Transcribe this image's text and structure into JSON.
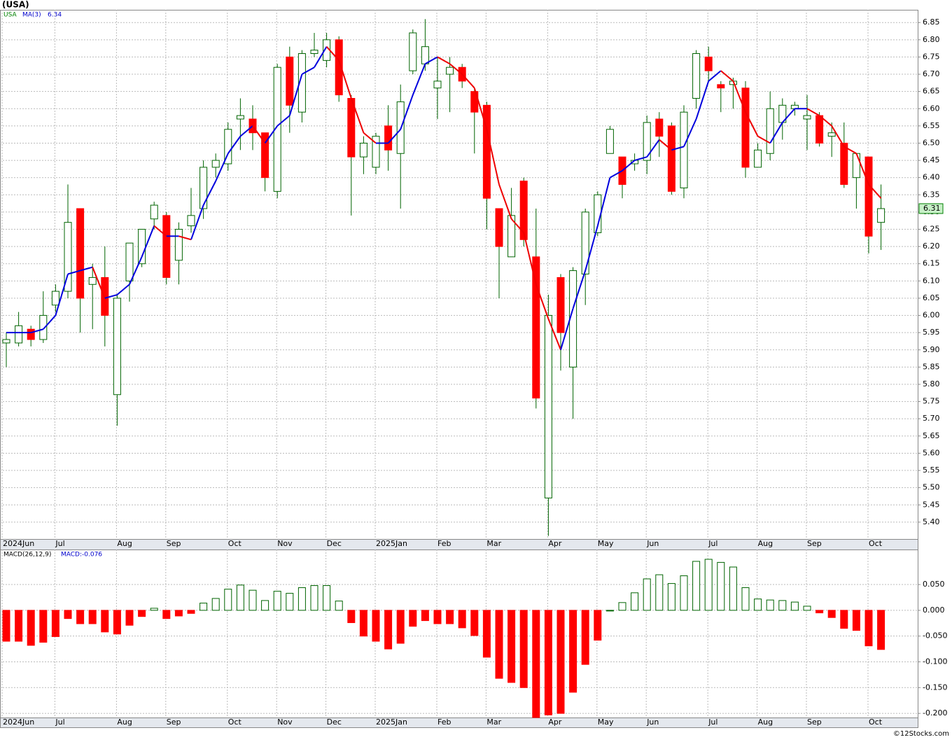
{
  "chart_data": [
    {
      "type": "candlestick",
      "title": "(USA)",
      "symbol": "USA",
      "categories": [
        "2024Jun",
        null,
        null,
        null,
        "Jul",
        null,
        null,
        null,
        null,
        "Aug",
        null,
        null,
        null,
        "Sep",
        null,
        null,
        null,
        null,
        "Oct",
        null,
        null,
        null,
        "Nov",
        null,
        null,
        null,
        "Dec",
        null,
        null,
        null,
        "2025Jan",
        null,
        null,
        null,
        null,
        "Feb",
        null,
        null,
        null,
        "Mar",
        null,
        null,
        null,
        null,
        "Apr",
        null,
        null,
        null,
        "May",
        null,
        null,
        null,
        "Jun",
        null,
        null,
        null,
        null,
        "Jul",
        null,
        null,
        null,
        "Aug",
        null,
        null,
        null,
        "Sep",
        null,
        null,
        null,
        null,
        "Oct",
        null
      ],
      "open": [
        5.92,
        5.92,
        5.96,
        5.93,
        6.03,
        6.07,
        6.31,
        6.09,
        6.11,
        5.77,
        6.1,
        6.15,
        6.28,
        6.29,
        6.16,
        6.26,
        6.31,
        6.43,
        6.44,
        6.57,
        6.57,
        6.53,
        6.36,
        6.75,
        6.59,
        6.76,
        6.74,
        6.8,
        6.63,
        6.46,
        6.43,
        6.55,
        6.47,
        6.71,
        6.73,
        6.66,
        6.7,
        6.72,
        6.65,
        6.61,
        6.31,
        6.17,
        6.39,
        6.17,
        5.47,
        6.11,
        5.85,
        6.12,
        6.24,
        6.47,
        6.46,
        6.44,
        6.45,
        6.57,
        6.55,
        6.37,
        6.63,
        6.75,
        6.67,
        6.67,
        6.66,
        6.43,
        6.47,
        6.56,
        6.6,
        6.57,
        6.58,
        6.52,
        6.5,
        6.4,
        6.46,
        6.27
      ],
      "high": [
        5.95,
        6.01,
        5.97,
        6.07,
        6.09,
        6.38,
        6.31,
        6.15,
        6.2,
        6.06,
        6.21,
        6.25,
        6.33,
        6.3,
        6.27,
        6.37,
        6.45,
        6.47,
        6.56,
        6.63,
        6.61,
        6.53,
        6.73,
        6.78,
        6.77,
        6.82,
        6.82,
        6.81,
        6.64,
        6.52,
        6.53,
        6.61,
        6.67,
        6.83,
        6.86,
        6.75,
        6.75,
        6.73,
        6.66,
        6.62,
        6.31,
        6.37,
        6.4,
        6.31,
        6.06,
        6.12,
        6.14,
        6.31,
        6.36,
        6.55,
        6.46,
        6.47,
        6.58,
        6.59,
        6.56,
        6.61,
        6.77,
        6.78,
        6.68,
        6.69,
        6.68,
        6.5,
        6.65,
        6.63,
        6.62,
        6.64,
        6.59,
        6.56,
        6.56,
        6.47,
        6.46,
        6.38
      ],
      "low": [
        5.85,
        5.91,
        5.91,
        5.92,
        6.01,
        6.05,
        5.95,
        5.96,
        5.91,
        5.68,
        6.04,
        6.14,
        6.25,
        6.09,
        6.09,
        6.24,
        6.28,
        6.4,
        6.42,
        6.48,
        6.48,
        6.36,
        6.34,
        6.53,
        6.56,
        6.75,
        6.72,
        6.62,
        6.29,
        6.41,
        6.41,
        6.42,
        6.31,
        6.7,
        6.71,
        6.57,
        6.59,
        6.66,
        6.47,
        6.25,
        6.05,
        6.17,
        6.2,
        5.73,
        5.36,
        5.84,
        5.7,
        6.03,
        6.23,
        6.47,
        6.34,
        6.42,
        6.41,
        6.46,
        6.35,
        6.34,
        6.6,
        6.68,
        6.59,
        6.6,
        6.4,
        6.43,
        6.45,
        6.51,
        6.58,
        6.48,
        6.49,
        6.46,
        6.37,
        6.31,
        6.18,
        6.19
      ],
      "close": [
        5.93,
        5.97,
        5.93,
        6.0,
        6.07,
        6.27,
        6.05,
        6.11,
        6.0,
        6.05,
        6.21,
        6.25,
        6.32,
        6.11,
        6.25,
        6.29,
        6.43,
        6.45,
        6.54,
        6.58,
        6.53,
        6.4,
        6.72,
        6.61,
        6.76,
        6.77,
        6.8,
        6.64,
        6.46,
        6.5,
        6.52,
        6.48,
        6.62,
        6.82,
        6.78,
        6.68,
        6.72,
        6.68,
        6.59,
        6.34,
        6.2,
        6.29,
        6.22,
        5.76,
        6.0,
        5.95,
        6.13,
        6.3,
        6.35,
        6.54,
        6.38,
        6.45,
        6.56,
        6.52,
        6.36,
        6.59,
        6.76,
        6.71,
        6.66,
        6.68,
        6.43,
        6.48,
        6.6,
        6.61,
        6.61,
        6.58,
        6.5,
        6.53,
        6.38,
        6.47,
        6.23,
        6.31
      ],
      "up_color": "#ffffff",
      "down_color": "#ff0000",
      "wick_color": "#006400",
      "series": [
        {
          "name": "MA(3)",
          "rise_color": "#0000dd",
          "fall_color": "#ee0000",
          "values": [
            5.95,
            5.95,
            5.95,
            5.96,
            6.0,
            6.12,
            6.13,
            6.14,
            6.05,
            6.06,
            6.09,
            6.17,
            6.26,
            6.23,
            6.23,
            6.22,
            6.32,
            6.39,
            6.47,
            6.52,
            6.55,
            6.5,
            6.55,
            6.58,
            6.7,
            6.72,
            6.78,
            6.74,
            6.63,
            6.53,
            6.5,
            6.5,
            6.54,
            6.64,
            6.73,
            6.75,
            6.73,
            6.7,
            6.66,
            6.54,
            6.38,
            6.28,
            6.24,
            6.09,
            5.99,
            5.9,
            6.02,
            6.13,
            6.26,
            6.4,
            6.42,
            6.45,
            6.46,
            6.51,
            6.48,
            6.49,
            6.57,
            6.68,
            6.71,
            6.68,
            6.59,
            6.52,
            6.5,
            6.56,
            6.6,
            6.6,
            6.58,
            6.55,
            6.49,
            6.47,
            6.38,
            6.34
          ]
        }
      ],
      "ylim": [
        5.351,
        6.887
      ],
      "yticks": [
        {
          "value": 6.85,
          "label": "6.85"
        },
        {
          "value": 6.8,
          "label": "6.80"
        },
        {
          "value": 6.75,
          "label": "6.75"
        },
        {
          "value": 6.7,
          "label": "6.70"
        },
        {
          "value": 6.65,
          "label": "6.65"
        },
        {
          "value": 6.6,
          "label": "6.60"
        },
        {
          "value": 6.55,
          "label": "6.55"
        },
        {
          "value": 6.5,
          "label": "6.50"
        },
        {
          "value": 6.45,
          "label": "6.45"
        },
        {
          "value": 6.4,
          "label": "6.40"
        },
        {
          "value": 6.35,
          "label": "6.35"
        },
        {
          "value": 6.3,
          "label": "6.30"
        },
        {
          "value": 6.25,
          "label": "6.25"
        },
        {
          "value": 6.2,
          "label": "6.20"
        },
        {
          "value": 6.15,
          "label": "6.15"
        },
        {
          "value": 6.1,
          "label": "6.10"
        },
        {
          "value": 6.05,
          "label": "6.05"
        },
        {
          "value": 6.0,
          "label": "6.00"
        },
        {
          "value": 5.95,
          "label": "5.95"
        },
        {
          "value": 5.9,
          "label": "5.90"
        },
        {
          "value": 5.85,
          "label": "5.85"
        },
        {
          "value": 5.8,
          "label": "5.80"
        },
        {
          "value": 5.75,
          "label": "5.75"
        },
        {
          "value": 5.7,
          "label": "5.70"
        },
        {
          "value": 5.65,
          "label": "5.65"
        },
        {
          "value": 5.6,
          "label": "5.60"
        },
        {
          "value": 5.55,
          "label": "5.55"
        },
        {
          "value": 5.5,
          "label": "5.50"
        },
        {
          "value": 5.45,
          "label": "5.45"
        },
        {
          "value": 5.4,
          "label": "5.40"
        }
      ],
      "grid": true
    },
    {
      "type": "bar",
      "title": "MACD(26,12,9)",
      "annotation": "MACD:-0.076",
      "pos_color": "#ffffff",
      "neg_color": "#ff0000",
      "edge_color": "#006400",
      "values": [
        -0.06,
        -0.06,
        -0.068,
        -0.062,
        -0.051,
        -0.016,
        -0.026,
        -0.026,
        -0.042,
        -0.046,
        -0.029,
        -0.012,
        0.004,
        -0.016,
        -0.011,
        -0.006,
        0.014,
        0.023,
        0.041,
        0.049,
        0.039,
        0.019,
        0.037,
        0.033,
        0.044,
        0.048,
        0.048,
        0.018,
        -0.024,
        -0.05,
        -0.06,
        -0.075,
        -0.064,
        -0.031,
        -0.02,
        -0.026,
        -0.026,
        -0.034,
        -0.049,
        -0.091,
        -0.132,
        -0.14,
        -0.15,
        -0.208,
        -0.203,
        -0.2,
        -0.159,
        -0.105,
        -0.058,
        0.0,
        0.015,
        0.034,
        0.061,
        0.069,
        0.052,
        0.067,
        0.095,
        0.099,
        0.093,
        0.084,
        0.044,
        0.022,
        0.02,
        0.019,
        0.016,
        0.008,
        -0.005,
        -0.014,
        -0.035,
        -0.039,
        -0.069,
        -0.076
      ],
      "ylim": [
        -0.208,
        0.118
      ],
      "yticks": [
        {
          "value": 0.05,
          "label": "0.050"
        },
        {
          "value": 0,
          "label": "0.000"
        },
        {
          "value": -0.05,
          "label": "-0.050"
        },
        {
          "value": -0.1,
          "label": "-0.100"
        },
        {
          "value": -0.15,
          "label": "-0.150"
        },
        {
          "value": -0.2,
          "label": "-0.200"
        }
      ],
      "grid": true
    }
  ],
  "footer": "©12Stocks.com"
}
